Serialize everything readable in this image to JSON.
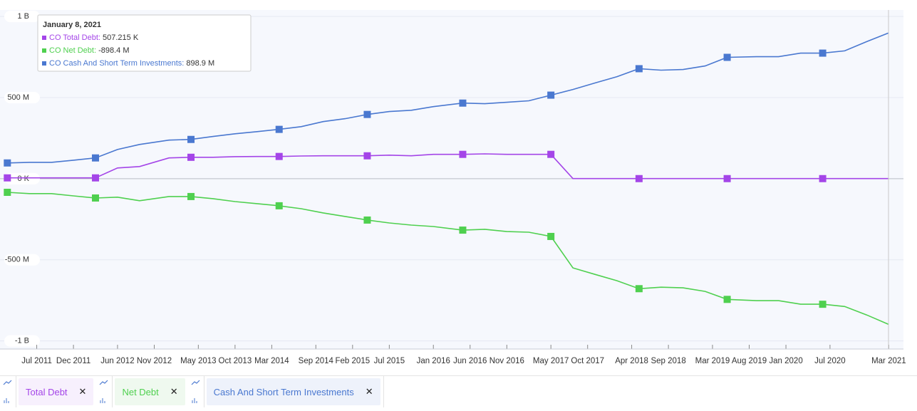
{
  "chart_data": {
    "type": "line",
    "x": [
      "Mar 2011",
      "Jun 2011",
      "Sep 2011",
      "Dec 2011",
      "Mar 2012",
      "Jun 2012",
      "Sep 2012",
      "Jan 2013",
      "Apr 2013",
      "Jul 2013",
      "Oct 2013",
      "Jan 2014",
      "Apr 2014",
      "Jul 2014",
      "Oct 2014",
      "Jan 2015",
      "Apr 2015",
      "Jul 2015",
      "Oct 2015",
      "Jan 2016",
      "May 2016",
      "Aug 2016",
      "Nov 2016",
      "Feb 2017",
      "May 2017",
      "Aug 2017",
      "Nov 2017",
      "Feb 2018",
      "May 2018",
      "Aug 2018",
      "Nov 2018",
      "Feb 2019",
      "May 2019",
      "Sep 2019",
      "Dec 2019",
      "Mar 2020",
      "Jun 2020",
      "Sep 2020",
      "Dec 2020",
      "Mar 2021"
    ],
    "xlim": [
      "Feb 2011",
      "May 2021"
    ],
    "xticks": [
      "Jul 2011",
      "Dec 2011",
      "Jun 2012",
      "Nov 2012",
      "May 2013",
      "Oct 2013",
      "Mar 2014",
      "Sep 2014",
      "Feb 2015",
      "Jul 2015",
      "Jan 2016",
      "Jun 2016",
      "Nov 2016",
      "May 2017",
      "Oct 2017",
      "Apr 2018",
      "Sep 2018",
      "Mar 2019",
      "Aug 2019",
      "Jan 2020",
      "Jul 2020",
      "Mar 2021"
    ],
    "ylim": [
      -1050000000,
      1040000000
    ],
    "yticks": [
      {
        "value": 1000000000,
        "label": "1 B"
      },
      {
        "value": 500000000,
        "label": "500 M"
      },
      {
        "value": 0,
        "label": "0 K"
      },
      {
        "value": -500000000,
        "label": "-500 M"
      },
      {
        "value": -1000000000,
        "label": "-1 B"
      }
    ],
    "grid": true,
    "series": [
      {
        "name": "Total Debt",
        "color": "#a445e8",
        "values": [
          5000000,
          5000000,
          5000000,
          5000000,
          5000000,
          66000000,
          75000000,
          128000000,
          132000000,
          132000000,
          136000000,
          137000000,
          137000000,
          140000000,
          141000000,
          141000000,
          141000000,
          145000000,
          141000000,
          150000000,
          150000000,
          153000000,
          150000000,
          150000000,
          150000000,
          500000,
          500000,
          500000,
          500000,
          500000,
          500000,
          500000,
          500000,
          500000,
          500000,
          500000,
          500000,
          500000,
          500000,
          507215
        ]
      },
      {
        "name": "Net Debt",
        "color": "#4fd04f",
        "values": [
          -84000000,
          -92000000,
          -92000000,
          -106000000,
          -119000000,
          -114000000,
          -136000000,
          -110000000,
          -110000000,
          -123000000,
          -141000000,
          -154000000,
          -167000000,
          -185000000,
          -211000000,
          -233000000,
          -255000000,
          -273000000,
          -286000000,
          -295000000,
          -317000000,
          -312000000,
          -326000000,
          -330000000,
          -356000000,
          -550000000,
          -590000000,
          -629000000,
          -678000000,
          -669000000,
          -673000000,
          -695000000,
          -744000000,
          -752000000,
          -752000000,
          -774000000,
          -774000000,
          -788000000,
          -840000000,
          -898400000
        ]
      },
      {
        "name": "Cash And Short Term Investments",
        "color": "#4a78d0",
        "values": [
          97000000,
          101000000,
          101000000,
          114000000,
          128000000,
          180000000,
          211000000,
          238000000,
          242000000,
          260000000,
          277000000,
          290000000,
          304000000,
          321000000,
          352000000,
          370000000,
          396000000,
          414000000,
          422000000,
          444000000,
          466000000,
          462000000,
          471000000,
          480000000,
          515000000,
          550000000,
          590000000,
          629000000,
          678000000,
          669000000,
          673000000,
          695000000,
          748000000,
          752000000,
          752000000,
          774000000,
          774000000,
          788000000,
          845000000,
          898900000
        ]
      }
    ],
    "tooltip": {
      "title": "January 8, 2021",
      "items": [
        {
          "name": "CO Total Debt",
          "value": 507215,
          "label": "507.215 K"
        },
        {
          "name": "CO Net Debt",
          "value": -898400000,
          "label": "-898.4 M"
        },
        {
          "name": "CO Cash And Short Term Investments",
          "value": 898900000,
          "label": "898.9 M"
        }
      ]
    }
  }
}
